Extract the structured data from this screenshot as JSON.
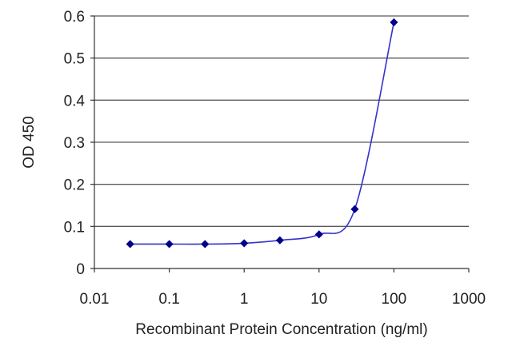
{
  "chart_data": {
    "type": "line",
    "xlabel": "Recombinant Protein Concentration (ng/ml)",
    "ylabel": "OD 450",
    "x_scale": "log",
    "xlim": [
      0.01,
      1000
    ],
    "ylim": [
      0,
      0.6
    ],
    "x_ticks": [
      {
        "value": 0.01,
        "label": "0.01"
      },
      {
        "value": 0.1,
        "label": "0.1"
      },
      {
        "value": 1,
        "label": "1"
      },
      {
        "value": 10,
        "label": "10"
      },
      {
        "value": 100,
        "label": "100"
      },
      {
        "value": 1000,
        "label": "1000"
      }
    ],
    "y_ticks": [
      {
        "value": 0,
        "label": "0"
      },
      {
        "value": 0.1,
        "label": "0.1"
      },
      {
        "value": 0.2,
        "label": "0.2"
      },
      {
        "value": 0.3,
        "label": "0.3"
      },
      {
        "value": 0.4,
        "label": "0.4"
      },
      {
        "value": 0.5,
        "label": "0.5"
      },
      {
        "value": 0.6,
        "label": "0.6"
      }
    ],
    "grid": {
      "horizontal": true,
      "vertical": false
    },
    "legend": "none",
    "series": [
      {
        "color": "#00008B",
        "marker": "diamond",
        "x": [
          0.03,
          0.1,
          0.3,
          1,
          3,
          10,
          30,
          100
        ],
        "y": [
          0.058,
          0.058,
          0.058,
          0.06,
          0.067,
          0.081,
          0.141,
          0.585
        ]
      }
    ]
  }
}
